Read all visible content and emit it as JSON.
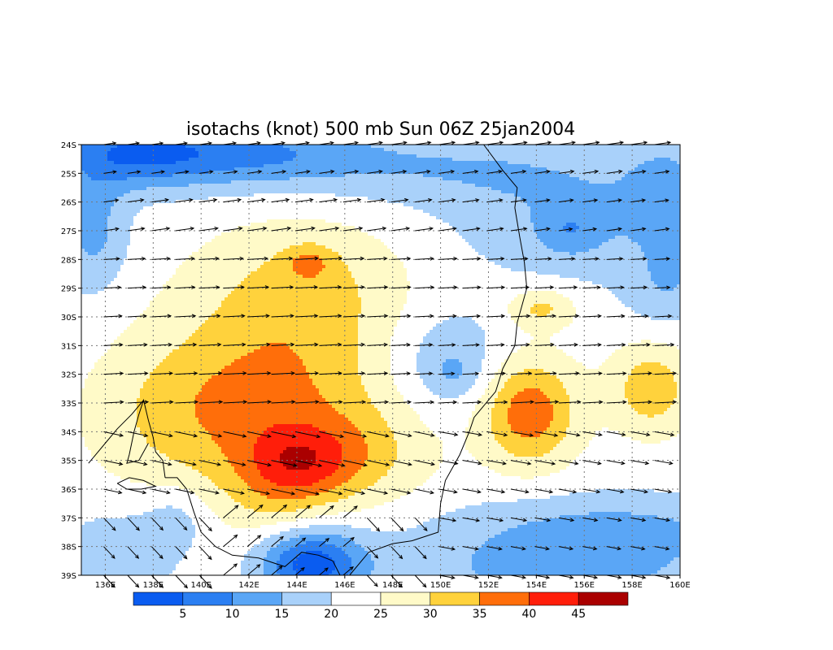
{
  "chart_data": {
    "type": "heatmap",
    "title": "isotachs (knot) 500 mb Sun 06Z 25jan2004",
    "xlim": [
      135,
      160
    ],
    "ylim": [
      -39,
      -24
    ],
    "x_ticks": [
      {
        "value": 136,
        "label": "136E"
      },
      {
        "value": 138,
        "label": "138E"
      },
      {
        "value": 140,
        "label": "140E"
      },
      {
        "value": 142,
        "label": "142E"
      },
      {
        "value": 144,
        "label": "144E"
      },
      {
        "value": 146,
        "label": "146E"
      },
      {
        "value": 148,
        "label": "148E"
      },
      {
        "value": 150,
        "label": "150E"
      },
      {
        "value": 152,
        "label": "152E"
      },
      {
        "value": 154,
        "label": "154E"
      },
      {
        "value": 156,
        "label": "156E"
      },
      {
        "value": 158,
        "label": "158E"
      },
      {
        "value": 160,
        "label": "160E"
      }
    ],
    "y_ticks": [
      {
        "value": -24,
        "label": "24S"
      },
      {
        "value": -25,
        "label": "25S"
      },
      {
        "value": -26,
        "label": "26S"
      },
      {
        "value": -27,
        "label": "27S"
      },
      {
        "value": -28,
        "label": "28S"
      },
      {
        "value": -29,
        "label": "29S"
      },
      {
        "value": -30,
        "label": "30S"
      },
      {
        "value": -31,
        "label": "31S"
      },
      {
        "value": -32,
        "label": "32S"
      },
      {
        "value": -33,
        "label": "33S"
      },
      {
        "value": -34,
        "label": "34S"
      },
      {
        "value": -35,
        "label": "35S"
      },
      {
        "value": -36,
        "label": "36S"
      },
      {
        "value": -37,
        "label": "37S"
      },
      {
        "value": -38,
        "label": "38S"
      },
      {
        "value": -39,
        "label": "39S"
      }
    ],
    "grid": true,
    "colorbar": {
      "levels": [
        5,
        10,
        15,
        20,
        25,
        30,
        35,
        40,
        45
      ],
      "colors": [
        "#0a5cf0",
        "#2b7ff2",
        "#5aa6f6",
        "#a9d1fa",
        "#ffffff",
        "#fffac8",
        "#ffd23c",
        "#ff6e0a",
        "#ff1e0a",
        "#aa0000"
      ]
    },
    "speed_field": {
      "background": 22.5,
      "features": [
        {
          "lon": 137.0,
          "lat": -24.3,
          "sx": 2.5,
          "sy": 0.9,
          "amp": -14
        },
        {
          "lon": 142.0,
          "lat": -24.3,
          "sx": 3.5,
          "sy": 0.8,
          "amp": -12
        },
        {
          "lon": 135.5,
          "lat": -27.0,
          "sx": 1.0,
          "sy": 1.5,
          "amp": -9
        },
        {
          "lon": 150.0,
          "lat": -24.8,
          "sx": 4.5,
          "sy": 0.9,
          "amp": -6
        },
        {
          "lon": 156.0,
          "lat": -26.5,
          "sx": 4.0,
          "sy": 1.6,
          "amp": -7
        },
        {
          "lon": 155.4,
          "lat": -27.0,
          "sx": 0.9,
          "sy": 0.6,
          "amp": -6
        },
        {
          "lon": 159.5,
          "lat": -25.5,
          "sx": 1.2,
          "sy": 1.5,
          "amp": -6
        },
        {
          "lon": 159.5,
          "lat": -29.0,
          "sx": 1.2,
          "sy": 1.0,
          "amp": -6
        },
        {
          "lon": 144.5,
          "lat": -28.8,
          "sx": 3.0,
          "sy": 1.6,
          "amp": 7
        },
        {
          "lon": 144.5,
          "lat": -28.1,
          "sx": 0.7,
          "sy": 0.4,
          "amp": 7
        },
        {
          "lon": 143.0,
          "lat": -32.8,
          "sx": 3.4,
          "sy": 2.4,
          "amp": 13
        },
        {
          "lon": 138.5,
          "lat": -33.5,
          "sx": 2.5,
          "sy": 1.8,
          "amp": 5
        },
        {
          "lon": 144.3,
          "lat": -35.0,
          "sx": 1.6,
          "sy": 0.9,
          "amp": 10
        },
        {
          "lon": 143.3,
          "lat": -36.0,
          "sx": 1.6,
          "sy": 1.2,
          "amp": 6
        },
        {
          "lon": 147.0,
          "lat": -34.8,
          "sx": 2.0,
          "sy": 1.2,
          "amp": 5
        },
        {
          "lon": 150.3,
          "lat": -31.5,
          "sx": 1.7,
          "sy": 1.3,
          "amp": -7
        },
        {
          "lon": 150.6,
          "lat": -32.0,
          "sx": 0.7,
          "sy": 0.5,
          "amp": -4
        },
        {
          "lon": 153.7,
          "lat": -33.3,
          "sx": 1.4,
          "sy": 1.3,
          "amp": 16
        },
        {
          "lon": 154.2,
          "lat": -29.7,
          "sx": 1.0,
          "sy": 0.5,
          "amp": 9
        },
        {
          "lon": 158.8,
          "lat": -32.5,
          "sx": 1.2,
          "sy": 1.1,
          "amp": 11
        },
        {
          "lon": 144.6,
          "lat": -38.6,
          "sx": 1.5,
          "sy": 0.9,
          "amp": -20
        },
        {
          "lon": 155.0,
          "lat": -38.8,
          "sx": 5.5,
          "sy": 1.2,
          "amp": -9
        },
        {
          "lon": 157.5,
          "lat": -37.2,
          "sx": 4.5,
          "sy": 0.8,
          "amp": -6
        },
        {
          "lon": 136.5,
          "lat": -38.3,
          "sx": 1.8,
          "sy": 1.2,
          "amp": -6
        },
        {
          "lon": 139.0,
          "lat": -37.0,
          "sx": 1.0,
          "sy": 0.8,
          "amp": -5
        }
      ]
    },
    "wind_arrows": {
      "spacing_deg": 1,
      "flow_angle_deg": {
        "north_band": 8,
        "central_band": 3,
        "south_band": -12,
        "southeast_band": -25
      }
    },
    "coastlines": [
      [
        [
          151.8,
          -24.0
        ],
        [
          152.6,
          -24.9
        ],
        [
          153.2,
          -25.5
        ],
        [
          153.1,
          -26.2
        ],
        [
          153.3,
          -27.2
        ],
        [
          153.5,
          -28.1
        ],
        [
          153.6,
          -29.0
        ],
        [
          153.2,
          -30.2
        ],
        [
          153.1,
          -31.0
        ],
        [
          152.6,
          -31.8
        ],
        [
          152.3,
          -32.6
        ],
        [
          151.4,
          -33.5
        ],
        [
          151.2,
          -34.0
        ],
        [
          150.8,
          -34.8
        ],
        [
          150.2,
          -35.7
        ],
        [
          150.0,
          -36.5
        ],
        [
          149.9,
          -37.5
        ],
        [
          148.8,
          -37.8
        ],
        [
          148.0,
          -37.9
        ],
        [
          147.0,
          -38.2
        ],
        [
          146.2,
          -39.0
        ]
      ],
      [
        [
          145.8,
          -39.0
        ],
        [
          145.5,
          -38.5
        ],
        [
          144.9,
          -38.3
        ],
        [
          144.2,
          -38.2
        ],
        [
          143.5,
          -38.7
        ],
        [
          142.4,
          -38.4
        ],
        [
          141.3,
          -38.3
        ],
        [
          140.6,
          -38.0
        ],
        [
          140.0,
          -37.5
        ],
        [
          139.7,
          -36.8
        ],
        [
          139.4,
          -36.0
        ],
        [
          139.0,
          -35.6
        ],
        [
          138.5,
          -35.6
        ]
      ],
      [
        [
          138.5,
          -35.6
        ],
        [
          138.4,
          -35.0
        ],
        [
          138.1,
          -34.7
        ],
        [
          138.0,
          -34.2
        ],
        [
          137.8,
          -33.6
        ],
        [
          137.6,
          -32.9
        ],
        [
          137.4,
          -33.4
        ],
        [
          137.2,
          -34.0
        ],
        [
          137.0,
          -34.8
        ],
        [
          136.9,
          -35.1
        ],
        [
          137.4,
          -35.0
        ],
        [
          137.8,
          -34.4
        ]
      ],
      [
        [
          137.6,
          -32.9
        ],
        [
          137.5,
          -33.0
        ],
        [
          137.1,
          -33.4
        ],
        [
          136.5,
          -33.9
        ],
        [
          136.0,
          -34.4
        ],
        [
          135.6,
          -34.8
        ],
        [
          135.3,
          -35.1
        ]
      ],
      [
        [
          136.5,
          -35.8
        ],
        [
          137.0,
          -35.6
        ],
        [
          137.6,
          -35.7
        ],
        [
          138.1,
          -35.9
        ],
        [
          137.5,
          -36.0
        ],
        [
          136.9,
          -36.0
        ],
        [
          136.5,
          -35.8
        ]
      ]
    ]
  }
}
